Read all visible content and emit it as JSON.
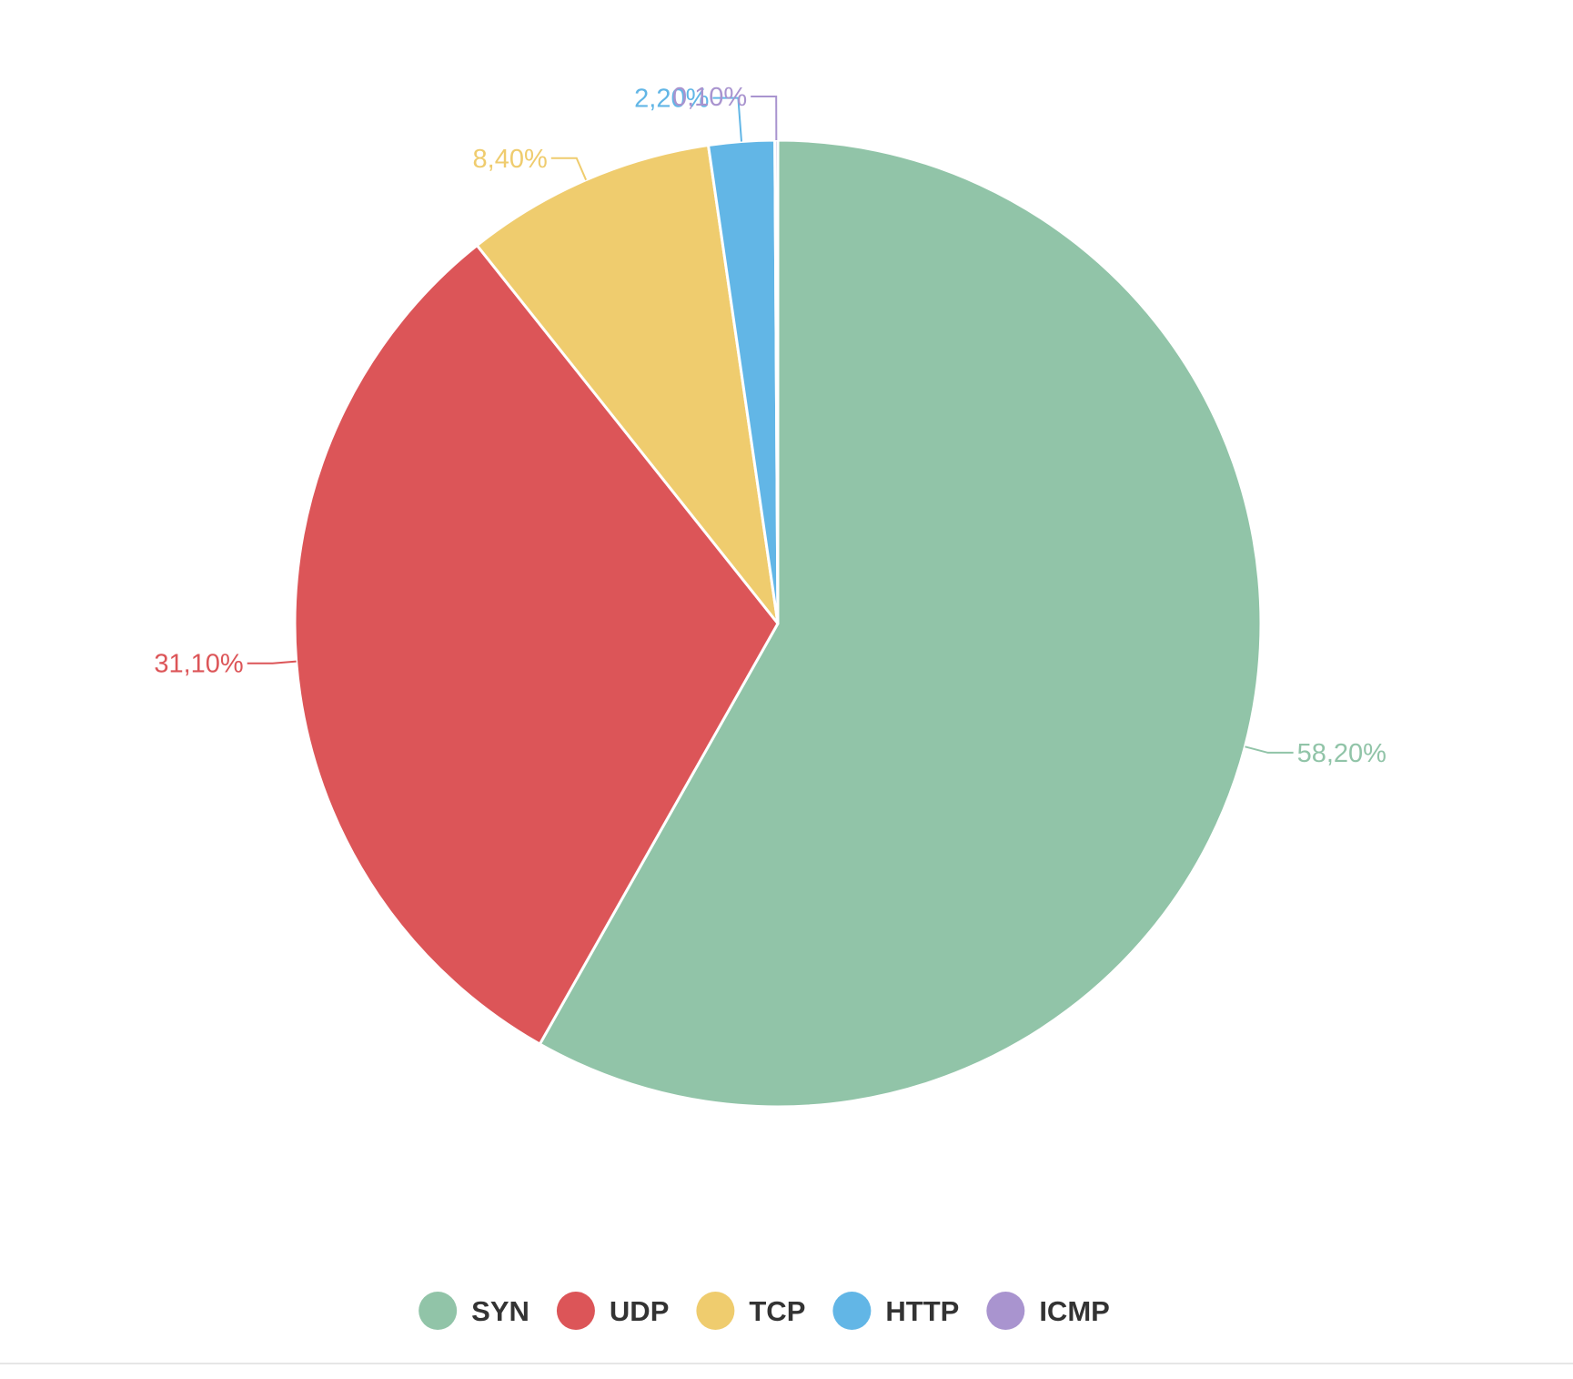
{
  "chart_data": {
    "type": "pie",
    "title": "",
    "series": [
      {
        "name": "SYN",
        "value": 58.2,
        "label": "58,20%",
        "color": "#91C4A8"
      },
      {
        "name": "UDP",
        "value": 31.1,
        "label": "31,10%",
        "color": "#DC5558"
      },
      {
        "name": "TCP",
        "value": 8.4,
        "label": "8,40%",
        "color": "#EFCC6E"
      },
      {
        "name": "HTTP",
        "value": 2.2,
        "label": "2,20%",
        "color": "#62B6E6"
      },
      {
        "name": "ICMP",
        "value": 0.1,
        "label": "0,10%",
        "color": "#A994CF"
      }
    ],
    "start_angle": "12 o'clock, clockwise",
    "legend_position": "bottom-center",
    "data_labels": "outside, with leader lines"
  }
}
